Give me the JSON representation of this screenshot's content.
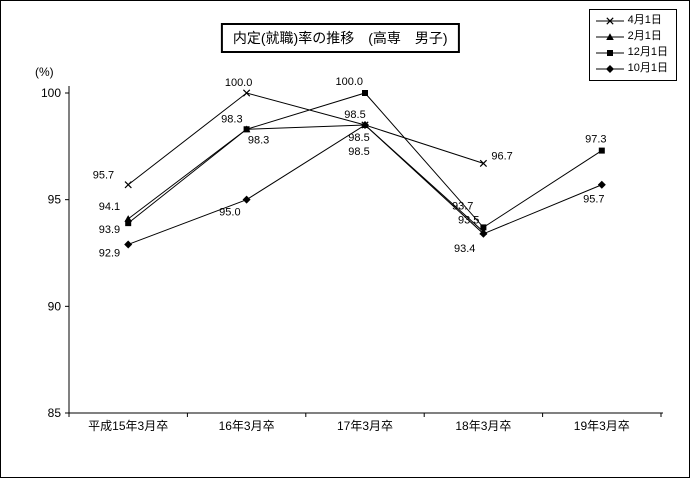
{
  "y_axis_unit": "(%)",
  "chart_data": {
    "type": "line",
    "title": "内定(就職)率の推移　(高専　男子)",
    "categories": [
      "平成15年3月卒",
      "16年3月卒",
      "17年3月卒",
      "18年3月卒",
      "19年3月卒"
    ],
    "series": [
      {
        "name": "4月1日",
        "marker": "x",
        "values": [
          95.7,
          100.0,
          98.5,
          96.7,
          null
        ]
      },
      {
        "name": "2月1日",
        "marker": "triangle",
        "values": [
          94.1,
          98.3,
          98.5,
          93.5,
          null
        ]
      },
      {
        "name": "12月1日",
        "marker": "square",
        "values": [
          93.9,
          98.3,
          100.0,
          93.7,
          97.3
        ]
      },
      {
        "name": "10月1日",
        "marker": "diamond",
        "values": [
          92.9,
          95.0,
          98.5,
          93.4,
          95.7
        ]
      }
    ],
    "xlabel": "",
    "ylabel": "(%)",
    "ylim": [
      85,
      100
    ],
    "yticks": [
      85,
      90,
      95,
      100
    ],
    "grid": false,
    "legend_position": "top-right",
    "line_color": "#000000",
    "background_color": "#ffffff"
  }
}
